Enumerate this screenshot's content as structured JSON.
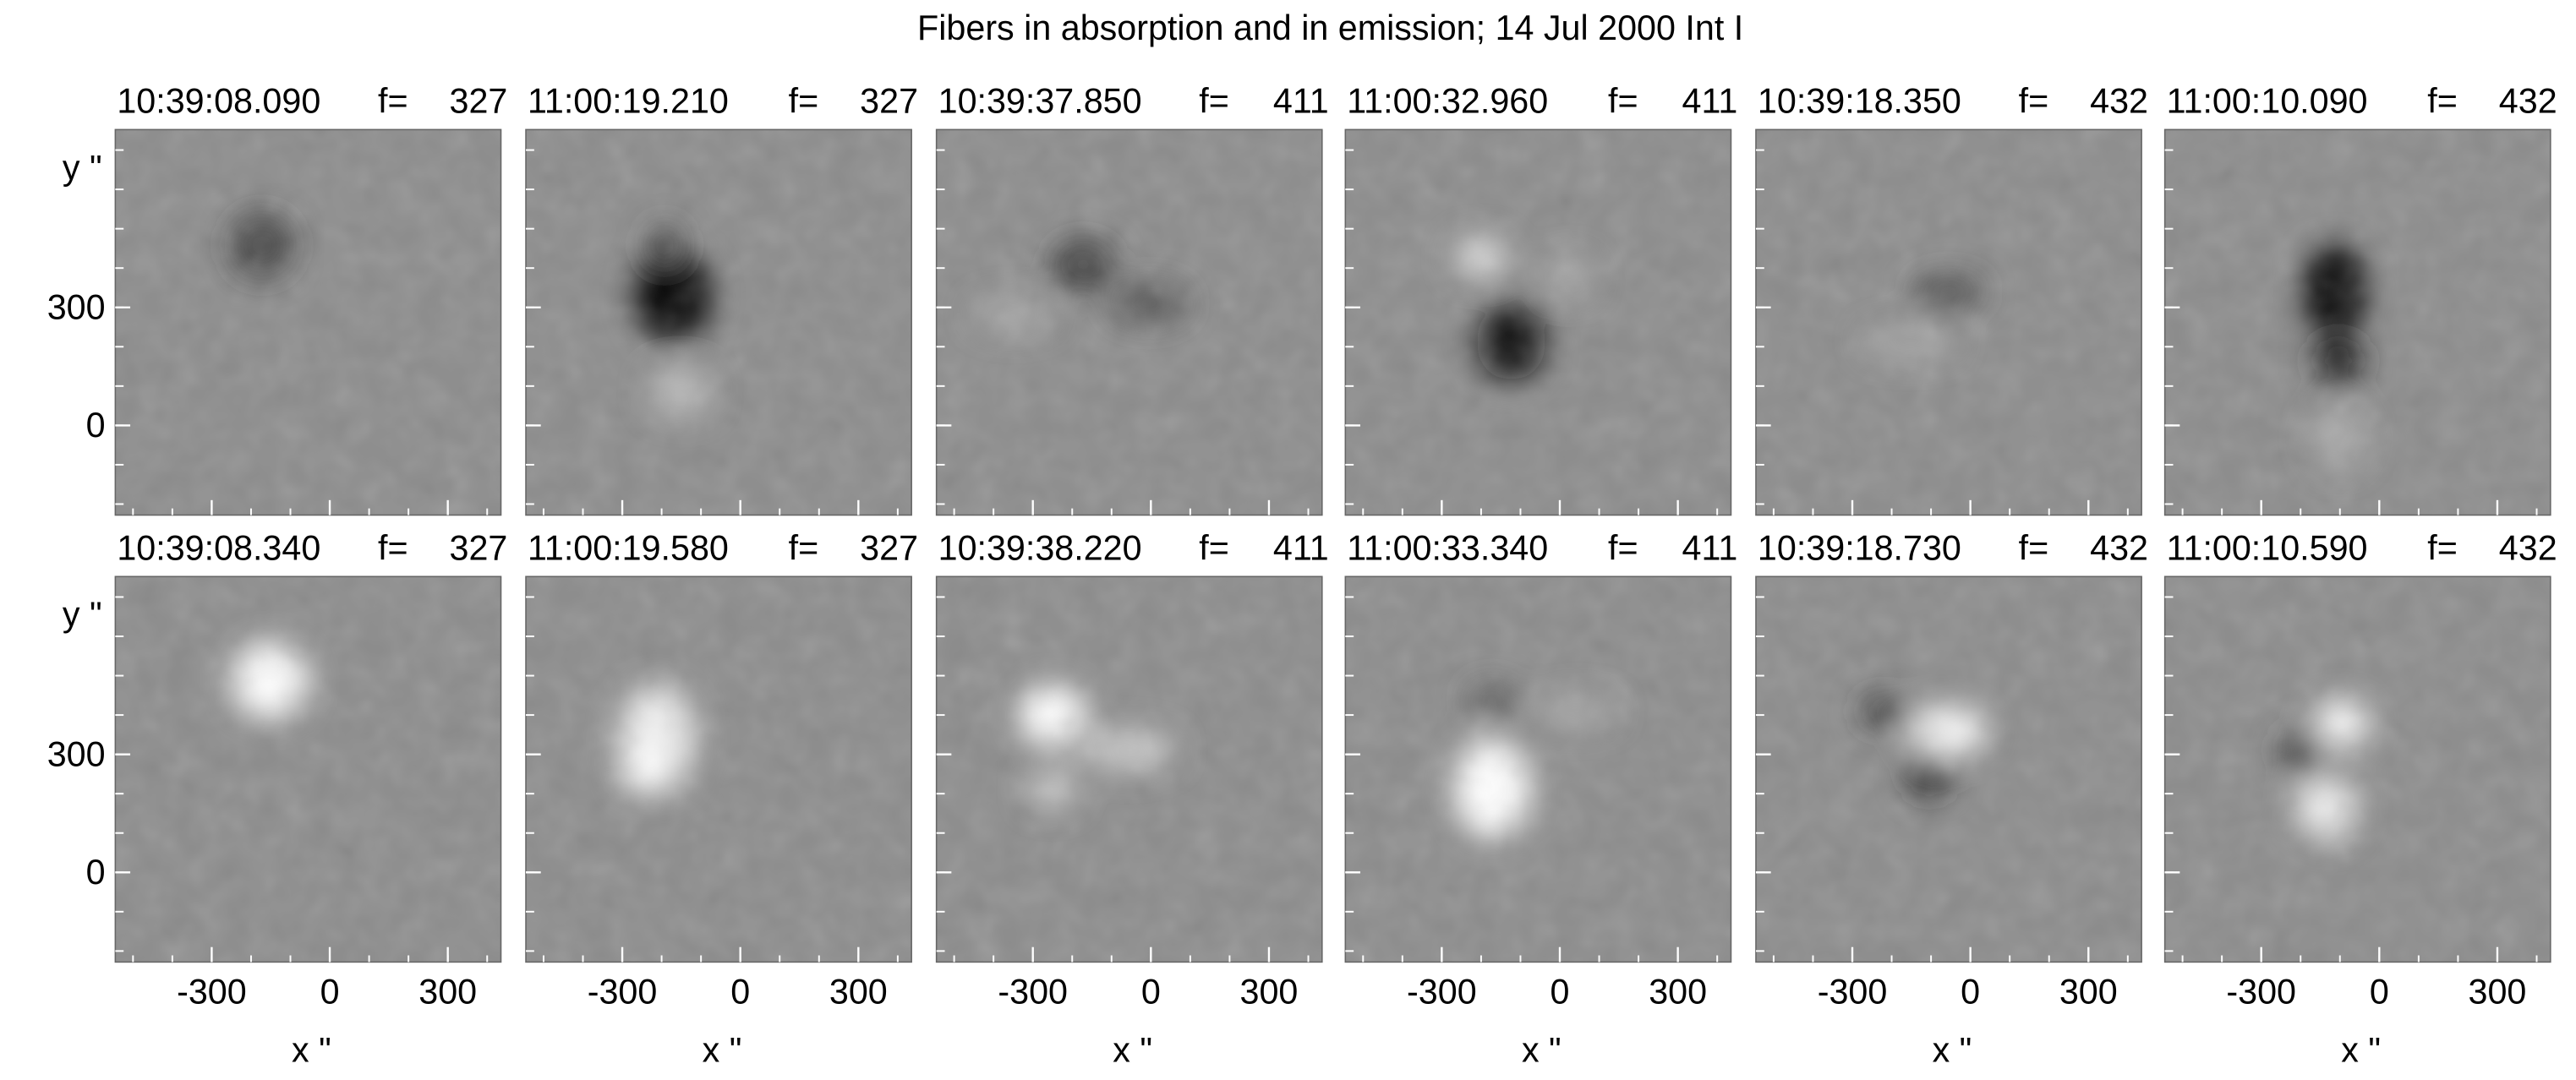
{
  "title": "Fibers in absorption and in emission; 14 Jul 2000 Int I",
  "frame_prefix": "f=",
  "x_label": "x \"",
  "y_label": "y \"",
  "xlim": [
    -545,
    435
  ],
  "ylim": [
    -228,
    752
  ],
  "xticks": [
    -300,
    0,
    300
  ],
  "yticks": [
    0,
    300
  ],
  "rows": [
    [
      {
        "time": "10:39:08.090",
        "f": 327
      },
      {
        "time": "11:00:19.210",
        "f": 327
      },
      {
        "time": "10:39:37.850",
        "f": 411
      },
      {
        "time": "11:00:32.960",
        "f": 411
      },
      {
        "time": "10:39:18.350",
        "f": 432
      },
      {
        "time": "11:00:10.090",
        "f": 432
      }
    ],
    [
      {
        "time": "10:39:08.340",
        "f": 327
      },
      {
        "time": "11:00:19.580",
        "f": 327
      },
      {
        "time": "10:39:38.220",
        "f": 411
      },
      {
        "time": "11:00:33.340",
        "f": 411
      },
      {
        "time": "10:39:18.730",
        "f": 432
      },
      {
        "time": "11:00:10.590",
        "f": 432
      }
    ]
  ]
}
